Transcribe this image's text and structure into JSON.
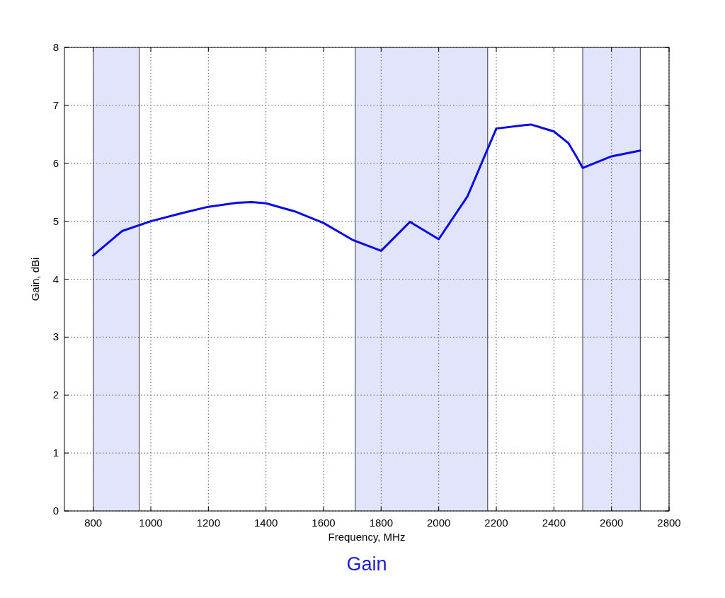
{
  "chart_data": {
    "type": "line",
    "title": "Gain",
    "xlabel": "Frequency, MHz",
    "ylabel": "Gain, dBi",
    "x": [
      800,
      900,
      1000,
      1100,
      1200,
      1300,
      1350,
      1400,
      1500,
      1600,
      1700,
      1800,
      1900,
      2000,
      2100,
      2200,
      2300,
      2320,
      2400,
      2450,
      2480,
      2500,
      2600,
      2700
    ],
    "series": [
      {
        "color": "#0a0ae6",
        "values": [
          4.41,
          4.83,
          5.0,
          5.13,
          5.25,
          5.32,
          5.33,
          5.31,
          5.17,
          4.97,
          4.68,
          4.49,
          4.99,
          4.69,
          5.43,
          6.6,
          6.66,
          6.67,
          6.55,
          6.35,
          6.1,
          5.92,
          6.12,
          6.22
        ]
      }
    ],
    "xlim": [
      700,
      2800
    ],
    "xticks": [
      800,
      1000,
      1200,
      1400,
      1600,
      1800,
      2000,
      2200,
      2400,
      2600,
      2800
    ],
    "ylim": [
      0,
      8
    ],
    "yticks": [
      0,
      1,
      2,
      3,
      4,
      5,
      6,
      7,
      8
    ],
    "bands": [
      {
        "axis": "x",
        "from": 800,
        "to": 960,
        "color": "#e1e4fa"
      },
      {
        "axis": "x",
        "from": 1710,
        "to": 2170,
        "color": "#e1e4fa"
      },
      {
        "axis": "x",
        "from": 2500,
        "to": 2700,
        "color": "#e1e4fa"
      }
    ],
    "grid": true,
    "line_style": "solid",
    "marker": "none"
  }
}
